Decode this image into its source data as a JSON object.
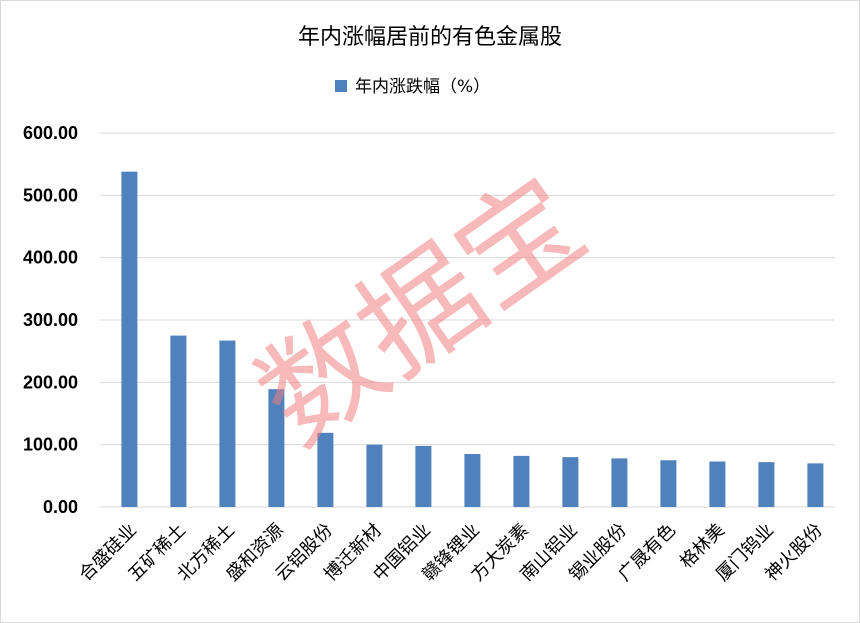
{
  "watermark": "数据宝",
  "chart_data": {
    "type": "bar",
    "title": "年内涨幅居前的有色金属股",
    "legend": [
      "年内涨跌幅（%）"
    ],
    "legend_position": "top-center",
    "xlabel": "",
    "ylabel": "",
    "ylim": [
      0,
      600
    ],
    "yticks": [
      "0.00",
      "100.00",
      "200.00",
      "300.00",
      "400.00",
      "500.00",
      "600.00"
    ],
    "grid": true,
    "categories": [
      "合盛硅业",
      "五矿稀土",
      "北方稀土",
      "盛和资源",
      "云铝股份",
      "博迁新材",
      "中国铝业",
      "赣锋锂业",
      "方大炭素",
      "南山铝业",
      "锡业股份",
      "广晟有色",
      "格林美",
      "厦门钨业",
      "神火股份"
    ],
    "series": [
      {
        "name": "年内涨跌幅（%）",
        "color": "#4f81bd",
        "values": [
          538,
          275,
          267,
          189,
          119,
          100,
          98,
          85,
          82,
          80,
          78,
          75,
          73,
          72,
          70
        ]
      }
    ]
  }
}
